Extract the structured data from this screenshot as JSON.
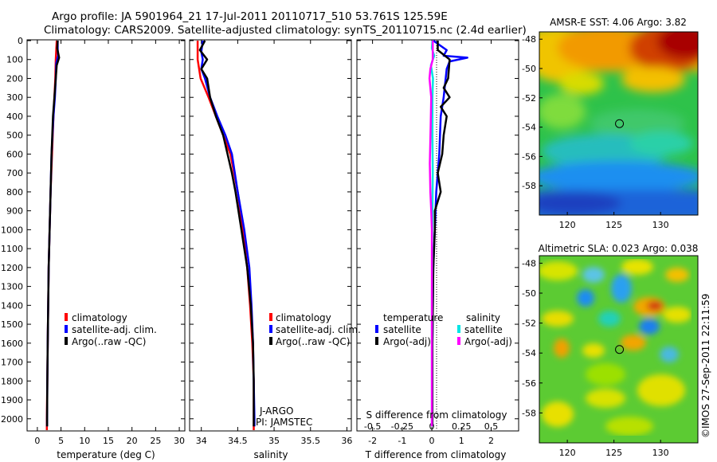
{
  "header": {
    "line1": "Argo profile: JA 5901964_21 17-Jul-2011 20110717_510 53.761S 125.59E",
    "line2": "Climatology: CARS2009. Satellite-adjusted climatology: synTS_20110715.nc (2.4d earlier)"
  },
  "colors": {
    "climatology": "#ff0000",
    "satellite": "#0000ff",
    "argo": "#000000",
    "sat_salinity": "#00e5e5",
    "argo_salinity": "#ff00ff"
  },
  "chart_data": [
    {
      "id": "temperature",
      "type": "line",
      "xlabel": "temperature (deg C)",
      "ylabel": "",
      "xlim": [
        -2,
        31
      ],
      "ylim": [
        0,
        2060
      ],
      "x_ticks": [
        0,
        5,
        10,
        15,
        20,
        25,
        30
      ],
      "x_tick_labels": [
        "0",
        "5",
        "10",
        "15",
        "20",
        "25",
        "30"
      ],
      "y_ticks": [
        0,
        100,
        200,
        300,
        400,
        500,
        600,
        700,
        800,
        900,
        1000,
        1100,
        1200,
        1300,
        1400,
        1500,
        1600,
        1700,
        1800,
        1900,
        2000
      ],
      "y_tick_labels": [
        "0",
        "100",
        "200",
        "300",
        "400",
        "500",
        "600",
        "700",
        "800",
        "900",
        "1000",
        "1100",
        "1200",
        "1300",
        "1400",
        "1500",
        "1600",
        "1700",
        "1800",
        "1900",
        "2000"
      ],
      "legend": [
        "climatology",
        "satellite-adj. clim.",
        "Argo(..raw -QC)"
      ],
      "series": [
        {
          "name": "climatology",
          "color": "#ff0000",
          "points": [
            [
              4.1,
              0
            ],
            [
              4.0,
              50
            ],
            [
              3.9,
              100
            ],
            [
              3.8,
              200
            ],
            [
              3.6,
              300
            ],
            [
              3.4,
              400
            ],
            [
              3.1,
              600
            ],
            [
              2.8,
              800
            ],
            [
              2.6,
              1000
            ],
            [
              2.4,
              1200
            ],
            [
              2.3,
              1400
            ],
            [
              2.2,
              1600
            ],
            [
              2.1,
              1800
            ],
            [
              2.0,
              2000
            ],
            [
              2.0,
              2060
            ]
          ]
        },
        {
          "name": "satellite-adj. clim.",
          "color": "#0000ff",
          "points": [
            [
              4.3,
              0
            ],
            [
              4.3,
              50
            ],
            [
              4.4,
              80
            ],
            [
              4.0,
              120
            ],
            [
              3.9,
              200
            ],
            [
              3.7,
              300
            ],
            [
              3.4,
              400
            ],
            [
              3.0,
              600
            ],
            [
              2.8,
              800
            ],
            [
              2.6,
              1000
            ],
            [
              2.4,
              1200
            ],
            [
              2.3,
              1400
            ],
            [
              2.2,
              1600
            ],
            [
              2.1,
              1800
            ],
            [
              2.05,
              2000
            ],
            [
              2.05,
              2040
            ]
          ]
        },
        {
          "name": "Argo(..raw -QC)",
          "color": "#000000",
          "points": [
            [
              4.3,
              0
            ],
            [
              4.2,
              40
            ],
            [
              4.6,
              90
            ],
            [
              4.1,
              130
            ],
            [
              3.9,
              200
            ],
            [
              3.6,
              300
            ],
            [
              3.3,
              400
            ],
            [
              3.0,
              600
            ],
            [
              2.8,
              800
            ],
            [
              2.6,
              1000
            ],
            [
              2.4,
              1200
            ],
            [
              2.3,
              1400
            ],
            [
              2.2,
              1600
            ],
            [
              2.1,
              1800
            ],
            [
              2.05,
              2000
            ],
            [
              2.05,
              2040
            ]
          ]
        }
      ]
    },
    {
      "id": "salinity",
      "type": "line",
      "xlabel": "salinity",
      "ylabel": "",
      "xlim": [
        33.85,
        36.05
      ],
      "ylim": [
        0,
        2060
      ],
      "x_ticks": [
        34,
        34.5,
        35,
        35.5,
        36
      ],
      "x_tick_labels": [
        "34",
        "34.5",
        "35",
        "35.5",
        "36"
      ],
      "legend": [
        "climatology",
        "satellite-adj. clim.",
        "Argo(..raw -QC)"
      ],
      "annotations": [
        "J-ARGO",
        "PI: JAMSTEC"
      ],
      "series": [
        {
          "name": "climatology",
          "color": "#ff0000",
          "points": [
            [
              33.95,
              0
            ],
            [
              33.95,
              100
            ],
            [
              33.99,
              200
            ],
            [
              34.1,
              300
            ],
            [
              34.2,
              400
            ],
            [
              34.3,
              500
            ],
            [
              34.4,
              600
            ],
            [
              34.5,
              800
            ],
            [
              34.57,
              1000
            ],
            [
              34.63,
              1200
            ],
            [
              34.67,
              1400
            ],
            [
              34.7,
              1600
            ],
            [
              34.72,
              1800
            ],
            [
              34.72,
              2000
            ],
            [
              34.72,
              2060
            ]
          ]
        },
        {
          "name": "satellite-adj. clim.",
          "color": "#0000ff",
          "points": [
            [
              34.02,
              0
            ],
            [
              34.0,
              60
            ],
            [
              34.02,
              100
            ],
            [
              34.0,
              150
            ],
            [
              34.05,
              200
            ],
            [
              34.12,
              300
            ],
            [
              34.22,
              400
            ],
            [
              34.33,
              500
            ],
            [
              34.42,
              600
            ],
            [
              34.5,
              800
            ],
            [
              34.59,
              1000
            ],
            [
              34.66,
              1200
            ],
            [
              34.69,
              1400
            ],
            [
              34.71,
              1600
            ],
            [
              34.72,
              1800
            ],
            [
              34.73,
              2000
            ],
            [
              34.73,
              2040
            ]
          ]
        },
        {
          "name": "Argo(..raw -QC)",
          "color": "#000000",
          "points": [
            [
              34.05,
              0
            ],
            [
              33.98,
              50
            ],
            [
              34.08,
              100
            ],
            [
              34.0,
              150
            ],
            [
              34.08,
              200
            ],
            [
              34.12,
              300
            ],
            [
              34.2,
              400
            ],
            [
              34.3,
              500
            ],
            [
              34.36,
              600
            ],
            [
              34.42,
              700
            ],
            [
              34.47,
              800
            ],
            [
              34.55,
              1000
            ],
            [
              34.63,
              1200
            ],
            [
              34.68,
              1400
            ],
            [
              34.71,
              1600
            ],
            [
              34.72,
              1800
            ],
            [
              34.72,
              2000
            ],
            [
              34.72,
              2040
            ]
          ]
        }
      ]
    },
    {
      "id": "difference",
      "type": "line",
      "xlabel": "T difference from climatology",
      "x2label": "S difference from climatology",
      "xlim": [
        -2.5,
        2.9
      ],
      "ylim": [
        0,
        2060
      ],
      "x_ticks": [
        -2,
        -1,
        0,
        1,
        2
      ],
      "x_tick_labels": [
        "-2",
        "-1",
        "0",
        "1",
        "2"
      ],
      "x2_ticks": [
        -0.5,
        -0.25,
        0,
        0.25,
        0.5
      ],
      "x2_tick_labels": [
        "-0.5",
        "-0.25",
        "0",
        "0.25",
        "0.5"
      ],
      "legend_headers": [
        "temperature",
        "salinity"
      ],
      "legend": [
        "satellite",
        "Argo(-adj)",
        "satellite",
        "Argo(-adj)"
      ],
      "series": [
        {
          "name": "temperature satellite",
          "color": "#0000ff",
          "points": [
            [
              0.05,
              0
            ],
            [
              0.5,
              50
            ],
            [
              0.4,
              80
            ],
            [
              1.2,
              90
            ],
            [
              0.6,
              110
            ],
            [
              0.5,
              150
            ],
            [
              0.4,
              300
            ],
            [
              0.3,
              400
            ],
            [
              0.25,
              600
            ],
            [
              0.15,
              800
            ],
            [
              0.1,
              1000
            ],
            [
              0.05,
              1200
            ],
            [
              0.02,
              1600
            ],
            [
              0.02,
              2040
            ]
          ]
        },
        {
          "name": "temperature Argo(-adj)",
          "color": "#000000",
          "points": [
            [
              0.2,
              0
            ],
            [
              0.2,
              50
            ],
            [
              0.6,
              100
            ],
            [
              0.55,
              200
            ],
            [
              0.4,
              250
            ],
            [
              0.6,
              300
            ],
            [
              0.3,
              350
            ],
            [
              0.5,
              400
            ],
            [
              0.4,
              500
            ],
            [
              0.35,
              600
            ],
            [
              0.2,
              700
            ],
            [
              0.3,
              800
            ],
            [
              0.1,
              900
            ],
            [
              0.1,
              1000
            ],
            [
              0.05,
              1200
            ],
            [
              0.02,
              1600
            ],
            [
              0.02,
              2040
            ]
          ]
        },
        {
          "name": "salinity satellite",
          "color": "#00e5e5",
          "points": [
            [
              0.02,
              0
            ],
            [
              0.0,
              40
            ],
            [
              0.08,
              80
            ],
            [
              -0.03,
              130
            ],
            [
              0.04,
              200
            ],
            [
              0.02,
              300
            ],
            [
              0.02,
              500
            ],
            [
              0.03,
              700
            ],
            [
              0.02,
              900
            ],
            [
              0.01,
              1100
            ],
            [
              0.0,
              1400
            ],
            [
              0.0,
              2040
            ]
          ]
        },
        {
          "name": "salinity Argo(-adj)",
          "color": "#ff00ff",
          "points": [
            [
              0.03,
              0
            ],
            [
              0.03,
              100
            ],
            [
              -0.05,
              150
            ],
            [
              -0.08,
              200
            ],
            [
              -0.02,
              300
            ],
            [
              -0.04,
              450
            ],
            [
              -0.07,
              650
            ],
            [
              -0.05,
              800
            ],
            [
              -0.02,
              900
            ],
            [
              0.0,
              1000
            ],
            [
              0.0,
              2040
            ]
          ]
        }
      ]
    },
    {
      "id": "sst-map",
      "type": "heatmap",
      "title": "AMSR-E SST: 4.06 Argo: 3.82",
      "xlim": [
        117,
        134
      ],
      "ylim": [
        -60,
        -47.5
      ],
      "x_ticks": [
        120,
        125,
        130
      ],
      "x_tick_labels": [
        "120",
        "125",
        "130"
      ],
      "y_ticks": [
        -48,
        -50,
        -52,
        -54,
        -56,
        -58
      ],
      "y_tick_labels": [
        "-48",
        "-50",
        "-52",
        "-54",
        "-56",
        "-58"
      ],
      "marker": {
        "lon": 125.59,
        "lat": -53.761
      }
    },
    {
      "id": "sla-map",
      "type": "heatmap",
      "title": "Altimetric SLA: 0.023 Argo: 0.038",
      "xlim": [
        117,
        134
      ],
      "ylim": [
        -60,
        -47.5
      ],
      "x_ticks": [
        120,
        125,
        130
      ],
      "x_tick_labels": [
        "120",
        "125",
        "130"
      ],
      "y_ticks": [
        -48,
        -50,
        -52,
        -54,
        -56,
        -58
      ],
      "y_tick_labels": [
        "-48",
        "-50",
        "-52",
        "-54",
        "-56",
        "-58"
      ],
      "marker": {
        "lon": 125.59,
        "lat": -53.761
      }
    }
  ],
  "footer": {
    "stamp": "©IMOS 27-Sep-2011 22:11:59"
  }
}
